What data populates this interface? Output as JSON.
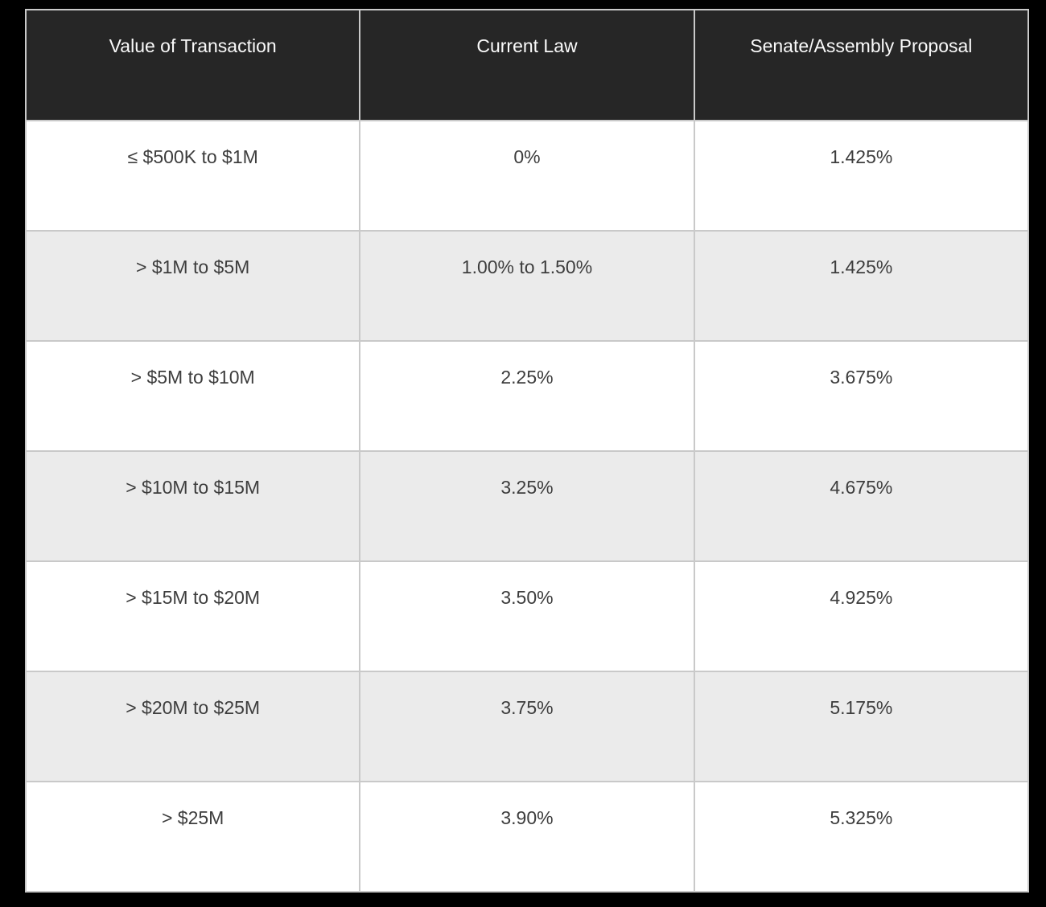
{
  "page": {
    "background_color": "#000000"
  },
  "table": {
    "name": "transfer-tax-rate-comparison",
    "columns": [
      "Value of Transaction",
      "Current Law",
      "Senate/Assembly Proposal"
    ],
    "rows": [
      [
        "≤ $500K to $1M",
        "0%",
        "1.425%"
      ],
      [
        "> $1M to $5M",
        "1.00% to 1.50%",
        "1.425%"
      ],
      [
        "> $5M to $10M",
        "2.25%",
        "3.675%"
      ],
      [
        "> $10M to $15M",
        "3.25%",
        "4.675%"
      ],
      [
        "> $15M to $20M",
        "3.50%",
        "4.925%"
      ],
      [
        "> $20M to $25M",
        "3.75%",
        "5.175%"
      ],
      [
        "> $25M",
        "3.90%",
        "5.325%"
      ]
    ],
    "colors": {
      "page_bg": "#000000",
      "header_bg": "#262626",
      "header_text": "#fafafa",
      "row_bg": "#ffffff",
      "row_alt_bg": "#ebebeb",
      "body_text": "#3d3d3d",
      "border": "#c9c9c9"
    }
  },
  "chart_data": {
    "type": "table",
    "title": "",
    "columns": [
      "Value of Transaction",
      "Current Law",
      "Senate/Assembly Proposal"
    ],
    "rows": [
      {
        "value_of_transaction": "≤ $500K to $1M",
        "current_law": "0%",
        "senate_assembly_proposal": "1.425%"
      },
      {
        "value_of_transaction": "> $1M to $5M",
        "current_law": "1.00% to 1.50%",
        "senate_assembly_proposal": "1.425%"
      },
      {
        "value_of_transaction": "> $5M to $10M",
        "current_law": "2.25%",
        "senate_assembly_proposal": "3.675%"
      },
      {
        "value_of_transaction": "> $10M to $15M",
        "current_law": "3.25%",
        "senate_assembly_proposal": "4.675%"
      },
      {
        "value_of_transaction": "> $15M to $20M",
        "current_law": "3.50%",
        "senate_assembly_proposal": "4.925%"
      },
      {
        "value_of_transaction": "> $20M to $25M",
        "current_law": "3.75%",
        "senate_assembly_proposal": "5.175%"
      },
      {
        "value_of_transaction": "> $25M",
        "current_law": "3.90%",
        "senate_assembly_proposal": "5.325%"
      }
    ],
    "layout_hints": {
      "header_style": "dark-background-light-text",
      "row_striping": "white-then-light-gray-alternating",
      "cell_text_align": "center",
      "cell_vertical_align": "top"
    }
  }
}
